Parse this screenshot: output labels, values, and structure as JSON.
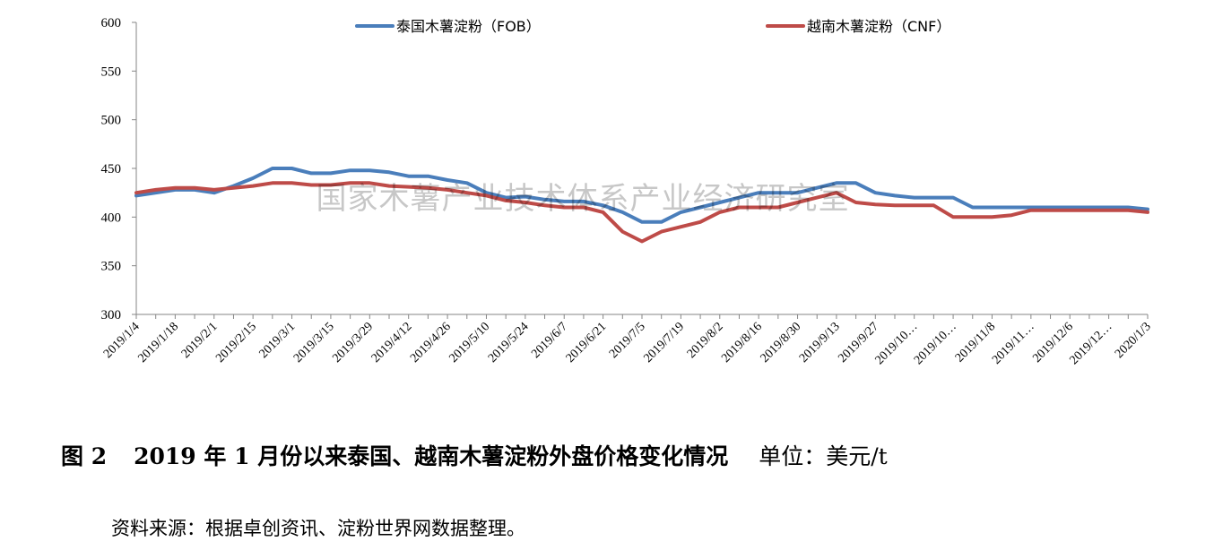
{
  "chart_data": {
    "type": "line",
    "x": [
      "2019/1/4",
      "2019/1/11",
      "2019/1/18",
      "2019/1/25",
      "2019/2/1",
      "2019/2/8",
      "2019/2/15",
      "2019/2/22",
      "2019/3/1",
      "2019/3/8",
      "2019/3/15",
      "2019/3/22",
      "2019/3/29",
      "2019/4/5",
      "2019/4/12",
      "2019/4/19",
      "2019/4/26",
      "2019/5/3",
      "2019/5/10",
      "2019/5/17",
      "2019/5/24",
      "2019/5/31",
      "2019/6/7",
      "2019/6/14",
      "2019/6/21",
      "2019/6/28",
      "2019/7/5",
      "2019/7/12",
      "2019/7/19",
      "2019/7/26",
      "2019/8/2",
      "2019/8/9",
      "2019/8/16",
      "2019/8/23",
      "2019/8/30",
      "2019/9/6",
      "2019/9/13",
      "2019/9/20",
      "2019/9/27",
      "2019/10/4",
      "2019/10/11",
      "2019/10/18",
      "2019/10/25",
      "2019/11/1",
      "2019/11/8",
      "2019/11/15",
      "2019/11/22",
      "2019/11/29",
      "2019/12/6",
      "2019/12/13",
      "2019/12/20",
      "2019/12/27",
      "2020/1/3"
    ],
    "xticklabels": [
      "2019/1/4",
      "2019/1/18",
      "2019/2/1",
      "2019/2/15",
      "2019/3/1",
      "2019/3/15",
      "2019/3/29",
      "2019/4/12",
      "2019/4/26",
      "2019/5/10",
      "2019/5/24",
      "2019/6/7",
      "2019/6/21",
      "2019/7/5",
      "2019/7/19",
      "2019/8/2",
      "2019/8/16",
      "2019/8/30",
      "2019/9/13",
      "2019/9/27",
      "2019/10…",
      "2019/10…",
      "2019/11/8",
      "2019/11…",
      "2019/12/6",
      "2019/12…",
      "2020/1/3"
    ],
    "series": [
      {
        "name": "泰国木薯淀粉（FOB）",
        "color": "#4a7ebb",
        "values": [
          422,
          425,
          428,
          428,
          425,
          432,
          440,
          450,
          450,
          445,
          445,
          448,
          448,
          446,
          442,
          442,
          438,
          435,
          425,
          420,
          421,
          418,
          416,
          416,
          412,
          405,
          395,
          395,
          405,
          410,
          415,
          420,
          425,
          425,
          425,
          430,
          435,
          435,
          425,
          422,
          420,
          420,
          420,
          410,
          410,
          410,
          410,
          410,
          410,
          410,
          410,
          410,
          408
        ]
      },
      {
        "name": "越南木薯淀粉（CNF）",
        "color": "#be4b48",
        "values": [
          425,
          428,
          430,
          430,
          428,
          430,
          432,
          435,
          435,
          433,
          433,
          435,
          435,
          432,
          431,
          430,
          428,
          425,
          422,
          417,
          415,
          412,
          410,
          410,
          405,
          385,
          375,
          385,
          390,
          395,
          405,
          410,
          410,
          410,
          415,
          420,
          425,
          415,
          413,
          412,
          412,
          412,
          400,
          400,
          400,
          402,
          407,
          407,
          407,
          407,
          407,
          407,
          405
        ]
      }
    ],
    "ylim": [
      300,
      600
    ],
    "yticks": [
      300,
      350,
      400,
      450,
      500,
      550,
      600
    ],
    "grid": false,
    "legend_position": "top",
    "watermark": "国家木薯产业技术体系产业经济研究室"
  },
  "caption": {
    "figure_label": "图 2",
    "title": "2019 年 1 月份以来泰国、越南木薯淀粉外盘价格变化情况",
    "unit": "单位：美元/t"
  },
  "source": "资料来源：根据卓创资讯、淀粉世界网数据整理。"
}
